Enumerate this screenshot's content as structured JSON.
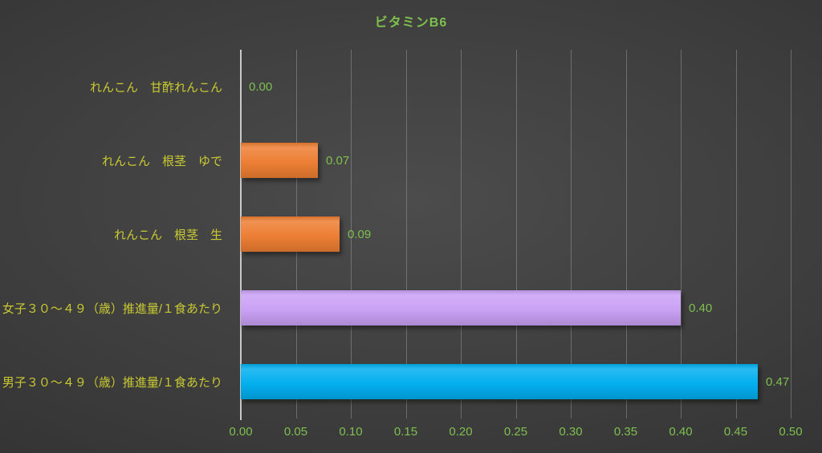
{
  "chart_data": {
    "type": "bar",
    "orientation": "horizontal",
    "title": "ビタミンB6",
    "categories": [
      "れんこん　甘酢れんこん",
      "れんこん　根茎　ゆで",
      "れんこん　根茎　生",
      "女子３０～４９（歳）推進量/１食あたり",
      "男子３０～４９（歳）推進量/１食あたり"
    ],
    "values": [
      0.0,
      0.07,
      0.09,
      0.4,
      0.47
    ],
    "value_labels": [
      "0.00",
      "0.07",
      "0.09",
      "0.40",
      "0.47"
    ],
    "bar_colors": [
      "#ED7D31",
      "#ED7D31",
      "#ED7D31",
      "#C9A0F5",
      "#00AEEF"
    ],
    "xlabel": "",
    "ylabel": "",
    "xlim": [
      0.0,
      0.5
    ],
    "xticks": [
      "0.00",
      "0.05",
      "0.10",
      "0.15",
      "0.20",
      "0.25",
      "0.30",
      "0.35",
      "0.40",
      "0.45",
      "0.50"
    ],
    "grid": true,
    "legend": "none",
    "colors": {
      "title_text": "#7ec04e",
      "category_text": "#c9c932",
      "value_text": "#7ec04e",
      "tick_text": "#7ec04e",
      "axis_line": "#c9c9c9",
      "gridline": "#8a8a8a",
      "background_center": "#4c4c4c",
      "background_edge": "#262626"
    }
  }
}
